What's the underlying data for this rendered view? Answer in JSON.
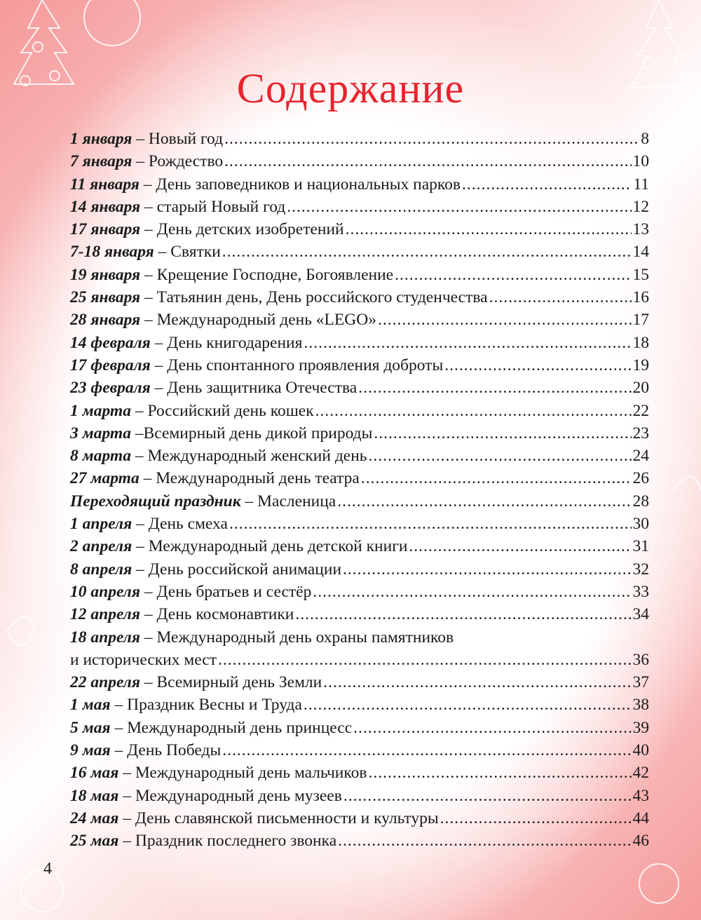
{
  "title": "Содержание",
  "page_number": "4",
  "accent_color": "#e8232e",
  "entries": [
    {
      "date": "1 января",
      "sep": " – ",
      "title": "Новый год",
      "page": "8"
    },
    {
      "date": "7 января",
      "sep": " – ",
      "title": "Рождество",
      "page": "10"
    },
    {
      "date": "11 января",
      "sep": " – ",
      "title": "День заповедников и национальных парков",
      "page": "11"
    },
    {
      "date": "14 января",
      "sep": " – ",
      "title": "старый Новый год",
      "page": "12"
    },
    {
      "date": "17 января",
      "sep": " – ",
      "title": "День детских изобретений",
      "page": "13"
    },
    {
      "date": "7-18 января",
      "sep": " – ",
      "title": "Святки",
      "page": "14"
    },
    {
      "date": "19 января",
      "sep": " – ",
      "title": "Крещение Господне, Богоявление",
      "page": "15"
    },
    {
      "date": "25 января",
      "sep": " – ",
      "title": "Татьянин день, День российского студенчества",
      "page": "16"
    },
    {
      "date": "28 января",
      "sep": " – ",
      "title": "Международный день «LEGO»",
      "page": "17"
    },
    {
      "date": "14 февраля",
      "sep": " – ",
      "title": "День книгодарения",
      "page": "18"
    },
    {
      "date": "17 февраля",
      "sep": " – ",
      "title": "День спонтанного проявления доброты",
      "page": "19"
    },
    {
      "date": "23 февраля",
      "sep": " – ",
      "title": "День защитника Отечества",
      "page": "20"
    },
    {
      "date": "1 марта",
      "sep": " – ",
      "title": "Российский день кошек",
      "page": "22"
    },
    {
      "date": "3 марта",
      "sep": " –",
      "title": "Всемирный день дикой природы",
      "page": "23"
    },
    {
      "date": "8 марта",
      "sep": " – ",
      "title": "Международный женский день",
      "page": "24"
    },
    {
      "date": "27 марта",
      "sep": " – ",
      "title": "Международный день театра",
      "page": "26"
    },
    {
      "date": "Переходящий праздник",
      "sep": " – ",
      "title": "Масленица",
      "page": "28"
    },
    {
      "date": "1 апреля",
      "sep": " – ",
      "title": "День смеха",
      "page": "30"
    },
    {
      "date": "2 апреля",
      "sep": " – ",
      "title": "Международный день детской книги",
      "page": "31"
    },
    {
      "date": "8 апреля",
      "sep": " – ",
      "title": "День российской анимации",
      "page": "32"
    },
    {
      "date": "10 апреля",
      "sep": " – ",
      "title": "День братьев и сестёр",
      "page": "33"
    },
    {
      "date": "12 апреля",
      "sep": " – ",
      "title": "День космонавтики",
      "page": "34"
    },
    {
      "date": "18 апреля",
      "sep": " – ",
      "title": "Международный день охраны памятников",
      "title_line2": "и исторических мест",
      "page": "36"
    },
    {
      "date": "22 апреля",
      "sep": " – ",
      "title": "Всемирный день Земли",
      "page": "37"
    },
    {
      "date": "1 мая",
      "sep": " – ",
      "title": "Праздник Весны и Труда",
      "page": "38"
    },
    {
      "date": "5 мая",
      "sep": " – ",
      "title": "Международный день принцесс",
      "page": "39"
    },
    {
      "date": "9 мая",
      "sep": " – ",
      "title": "День Победы",
      "page": "40"
    },
    {
      "date": "16 мая",
      "sep": " – ",
      "title": "Международный день мальчиков",
      "page": "42"
    },
    {
      "date": "18 мая",
      "sep": " – ",
      "title": "Международный день музеев",
      "page": "43"
    },
    {
      "date": "24 мая",
      "sep": " – ",
      "title": "День славянской письменности и культуры",
      "page": "44"
    },
    {
      "date": "25 мая",
      "sep": " – ",
      "title": "Праздник последнего звонка",
      "page": "46"
    }
  ]
}
